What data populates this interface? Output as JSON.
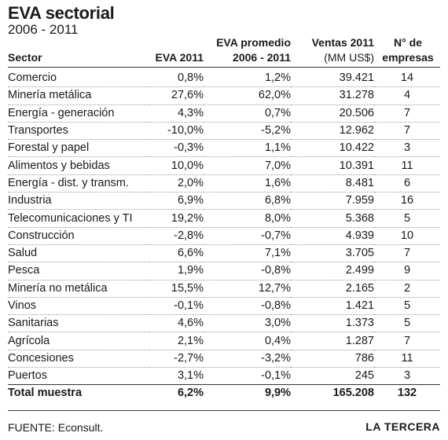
{
  "title": "EVA sectorial",
  "subtitle": "2006 - 2011",
  "headers": {
    "sector": "Sector",
    "eva2011": "EVA 2011",
    "eva_prom_line1": "EVA promedio",
    "eva_prom_line2": "2006 - 2011",
    "ventas_line1": "Ventas 2011",
    "ventas_line2": "(MM US$)",
    "empresas_line1": "N° de",
    "empresas_line2": "empresas"
  },
  "rows": [
    {
      "sector": "Comercio",
      "eva2011": "0,8%",
      "eva_prom": "1,2%",
      "ventas": "39.421",
      "empresas": "14"
    },
    {
      "sector": "Minería metálica",
      "eva2011": "27,6%",
      "eva_prom": "62,0%",
      "ventas": "31.278",
      "empresas": "4"
    },
    {
      "sector": "Energía - generación",
      "eva2011": "4,3%",
      "eva_prom": "0,7%",
      "ventas": "20.506",
      "empresas": "7"
    },
    {
      "sector": "Transportes",
      "eva2011": "-10,0%",
      "eva_prom": "-5,2%",
      "ventas": "12.962",
      "empresas": "7"
    },
    {
      "sector": "Forestal y papel",
      "eva2011": "-0,3%",
      "eva_prom": "1,1%",
      "ventas": "10.422",
      "empresas": "3"
    },
    {
      "sector": "Alimentos y bebidas",
      "eva2011": "10,0%",
      "eva_prom": "7,0%",
      "ventas": "10.391",
      "empresas": "11"
    },
    {
      "sector": "Energía - dist. y transm.",
      "eva2011": "2,0%",
      "eva_prom": "1,6%",
      "ventas": "8.481",
      "empresas": "6"
    },
    {
      "sector": "Industria",
      "eva2011": "6,9%",
      "eva_prom": "6,8%",
      "ventas": "7.959",
      "empresas": "16"
    },
    {
      "sector": "Telecomunicaciones y TI",
      "eva2011": "19,2%",
      "eva_prom": "8,0%",
      "ventas": "5.368",
      "empresas": "5"
    },
    {
      "sector": "Construcción",
      "eva2011": "-2,8%",
      "eva_prom": "-0,7%",
      "ventas": "4.939",
      "empresas": "10"
    },
    {
      "sector": "Salud",
      "eva2011": "6,6%",
      "eva_prom": "7,1%",
      "ventas": "3.705",
      "empresas": "7"
    },
    {
      "sector": "Pesca",
      "eva2011": "1,9%",
      "eva_prom": "-0,8%",
      "ventas": "2.499",
      "empresas": "9"
    },
    {
      "sector": "Minería no metálica",
      "eva2011": "15,5%",
      "eva_prom": "12,7%",
      "ventas": "2.165",
      "empresas": "2"
    },
    {
      "sector": "Vinos",
      "eva2011": "-0,1%",
      "eva_prom": "-0,8%",
      "ventas": "1.421",
      "empresas": "5"
    },
    {
      "sector": "Sanitarias",
      "eva2011": "4,6%",
      "eva_prom": "3,0%",
      "ventas": "1.373",
      "empresas": "5"
    },
    {
      "sector": "Agrícola",
      "eva2011": "2,1%",
      "eva_prom": "0,4%",
      "ventas": "1.287",
      "empresas": "7"
    },
    {
      "sector": "Concesiones",
      "eva2011": "-2,7%",
      "eva_prom": "-3,2%",
      "ventas": "786",
      "empresas": "11"
    },
    {
      "sector": "Puertos",
      "eva2011": "3,1%",
      "eva_prom": "-0,1%",
      "ventas": "245",
      "empresas": "3"
    }
  ],
  "total": {
    "sector": "Total muestra",
    "eva2011": "6,2%",
    "eva_prom": "9,9%",
    "ventas": "165.208",
    "empresas": "132"
  },
  "source": "FUENTE: Econsult.",
  "brand": "LA TERCERA"
}
